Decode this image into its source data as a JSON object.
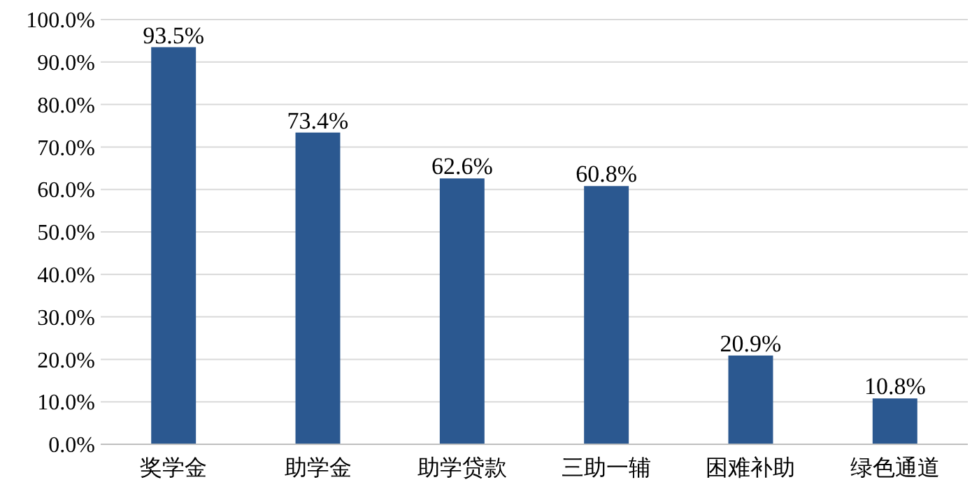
{
  "chart_data": {
    "type": "bar",
    "categories": [
      "奖学金",
      "助学金",
      "助学贷款",
      "三助一辅",
      "困难补助",
      "绿色通道"
    ],
    "values": [
      93.5,
      73.4,
      62.6,
      60.8,
      20.9,
      10.8
    ],
    "value_labels": [
      "93.5%",
      "73.4%",
      "62.6%",
      "60.8%",
      "20.9%",
      "10.8%"
    ],
    "color": "#2b5890",
    "ylim": [
      0,
      100
    ],
    "yticks": [
      {
        "value": 0,
        "label": "0.0%"
      },
      {
        "value": 10,
        "label": "10.0%"
      },
      {
        "value": 20,
        "label": "20.0%"
      },
      {
        "value": 30,
        "label": "30.0%"
      },
      {
        "value": 40,
        "label": "40.0%"
      },
      {
        "value": 50,
        "label": "50.0%"
      },
      {
        "value": 60,
        "label": "60.0%"
      },
      {
        "value": 70,
        "label": "70.0%"
      },
      {
        "value": 80,
        "label": "80.0%"
      },
      {
        "value": 90,
        "label": "90.0%"
      },
      {
        "value": 100,
        "label": "100.0%"
      }
    ],
    "grid": "y"
  }
}
